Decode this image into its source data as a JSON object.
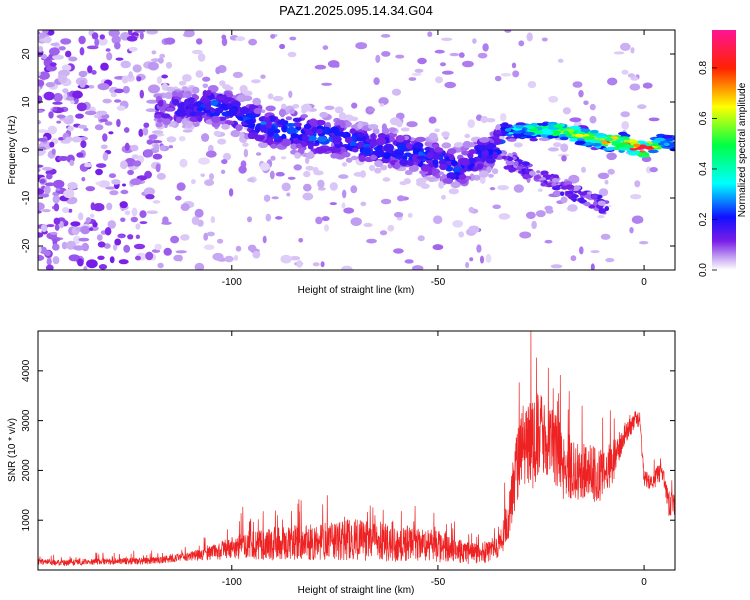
{
  "figure_title": "PAZ1.2025.095.14.34.G04",
  "colors": {
    "snr_line": "#ee2222",
    "colormap": [
      "#ffffff",
      "#c6a8f2",
      "#7a1ee8",
      "#1010ff",
      "#00ffff",
      "#00ff44",
      "#ffff00",
      "#ff2200",
      "#ff1493"
    ]
  },
  "chart_data": [
    {
      "type": "heatmap",
      "title": "PAZ1.2025.095.14.34.G04",
      "xlabel": "Height of straight line (km)",
      "ylabel": "Frequency (Hz)",
      "xlim": [
        -147,
        7.5
      ],
      "ylim": [
        -25,
        25
      ],
      "xticks": [
        -100,
        -50,
        0
      ],
      "xtick_labels": [
        "-100",
        "-50",
        "0"
      ],
      "yticks": [
        -20,
        -10,
        0,
        10,
        20
      ],
      "ytick_labels": [
        "-20",
        "-10",
        "0",
        "10",
        "20"
      ],
      "colorbar": {
        "label": "Normalized spectral amplitude",
        "range": [
          0,
          0.95
        ],
        "ticks": [
          0,
          0.2,
          0.4,
          0.6,
          0.8
        ],
        "tick_labels": [
          "0.0",
          "0.2",
          "0.4",
          "0.6",
          "0.8"
        ]
      },
      "ridge": [
        {
          "x": -115,
          "f": 8.5,
          "amp": 0.15
        },
        {
          "x": -108,
          "f": 9,
          "amp": 0.2
        },
        {
          "x": -105,
          "f": 9.5,
          "amp": 0.25
        },
        {
          "x": -100,
          "f": 8,
          "amp": 0.22
        },
        {
          "x": -95,
          "f": 6,
          "amp": 0.25
        },
        {
          "x": -90,
          "f": 4.5,
          "amp": 0.25
        },
        {
          "x": -85,
          "f": 4,
          "amp": 0.25
        },
        {
          "x": -80,
          "f": 3,
          "amp": 0.25
        },
        {
          "x": -75,
          "f": 2.5,
          "amp": 0.23
        },
        {
          "x": -70,
          "f": 1.5,
          "amp": 0.22
        },
        {
          "x": -65,
          "f": 0.5,
          "amp": 0.22
        },
        {
          "x": -60,
          "f": 0,
          "amp": 0.23
        },
        {
          "x": -55,
          "f": -1,
          "amp": 0.23
        },
        {
          "x": -50,
          "f": -2,
          "amp": 0.22
        },
        {
          "x": -45,
          "f": -4,
          "amp": 0.22
        },
        {
          "x": -40,
          "f": -1,
          "amp": 0.2
        },
        {
          "x": -36,
          "f": 0,
          "amp": 0.2
        },
        {
          "x": -34,
          "f": 4,
          "amp": 0.3
        },
        {
          "x": -30,
          "f": 4,
          "amp": 0.4
        },
        {
          "x": -25,
          "f": 4,
          "amp": 0.5
        },
        {
          "x": -20,
          "f": 4,
          "amp": 0.6
        },
        {
          "x": -15,
          "f": 3,
          "amp": 0.6
        },
        {
          "x": -10,
          "f": 2,
          "amp": 0.7
        },
        {
          "x": -5,
          "f": 1.5,
          "amp": 0.75
        },
        {
          "x": 0,
          "f": 0,
          "amp": 0.9
        },
        {
          "x": 3,
          "f": 1,
          "amp": 0.6
        },
        {
          "x": 5,
          "f": 2,
          "amp": 0.45
        },
        {
          "x": 7.5,
          "f": 1,
          "amp": 0.35
        }
      ]
    },
    {
      "type": "line",
      "xlabel": "Height of straight line (km)",
      "ylabel": "SNR (10 * v/v)",
      "xlim": [
        -147,
        7.5
      ],
      "ylim": [
        0,
        4800
      ],
      "xticks": [
        -100,
        -50,
        0
      ],
      "xtick_labels": [
        "-100",
        "-50",
        "0"
      ],
      "yticks": [
        1000,
        2000,
        3000,
        4000
      ],
      "ytick_labels": [
        "1000",
        "2000",
        "3000",
        "4000"
      ],
      "series": [
        {
          "x": [
            -147,
            -140,
            -130,
            -120,
            -115,
            -110,
            -105,
            -100,
            -95,
            -90,
            -85,
            -80,
            -75,
            -70,
            -65,
            -60,
            -55,
            -50,
            -45,
            -40,
            -35,
            -33,
            -30,
            -27,
            -25,
            -22,
            -20,
            -15,
            -10,
            -8,
            -5,
            -3,
            -2,
            -1,
            0,
            2,
            4,
            5,
            6,
            7.5
          ],
          "baseline": [
            150,
            130,
            150,
            160,
            200,
            250,
            300,
            380,
            420,
            430,
            450,
            460,
            470,
            480,
            460,
            400,
            420,
            380,
            300,
            250,
            400,
            900,
            2200,
            2300,
            2400,
            2300,
            1900,
            1800,
            1700,
            2000,
            2600,
            2850,
            3000,
            2900,
            1800,
            1700,
            1900,
            1700,
            1200,
            1300
          ],
          "spread": [
            120,
            120,
            130,
            140,
            150,
            180,
            300,
            450,
            600,
            700,
            700,
            750,
            800,
            850,
            800,
            700,
            700,
            650,
            500,
            400,
            500,
            900,
            1600,
            2000,
            1800,
            1500,
            1400,
            1200,
            1100,
            1000,
            600,
            350,
            250,
            250,
            300,
            350,
            450,
            500,
            400,
            600
          ]
        }
      ]
    }
  ]
}
